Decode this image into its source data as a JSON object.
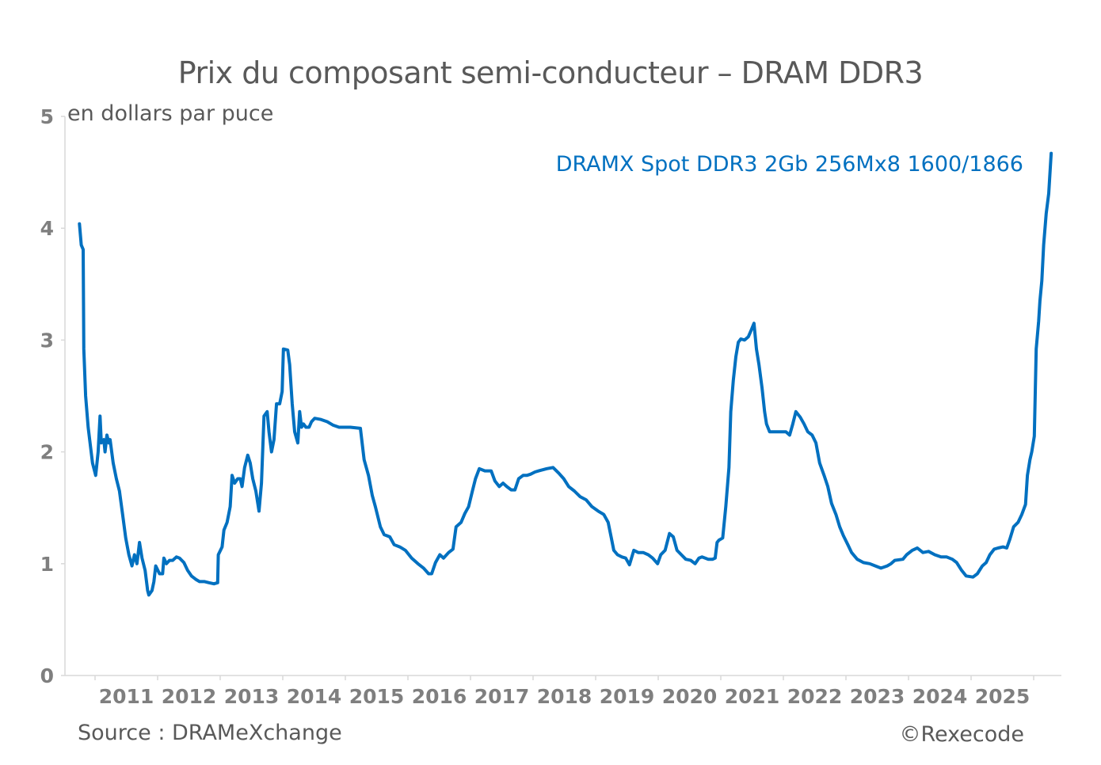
{
  "chart_data": {
    "type": "line",
    "title": "Prix du composant semi-conducteur – DRAM DDR3",
    "ylabel": "en dollars par puce",
    "xlabel": "",
    "ylim": [
      0,
      5
    ],
    "xlim": [
      2010.5,
      2026.42
    ],
    "yticks": [
      "0",
      "1",
      "2",
      "3",
      "4",
      "5"
    ],
    "xtick_labels": [
      "2011",
      "2012",
      "2013",
      "2014",
      "2015",
      "2016",
      "2017",
      "2018",
      "2019",
      "2020",
      "2021",
      "2022",
      "2023",
      "2024",
      "2025"
    ],
    "grid": false,
    "legend_position": "top-right",
    "source": "Source : DRAMeXchange",
    "copyright": "©Rexecode",
    "series": [
      {
        "name": "DRAMX Spot DDR3 2Gb 256Mx8 1600/1866",
        "color": "#0070c0",
        "points": [
          [
            2010.75,
            4.04
          ],
          [
            2010.78,
            3.85
          ],
          [
            2010.81,
            3.81
          ],
          [
            2010.82,
            2.92
          ],
          [
            2010.85,
            2.5
          ],
          [
            2010.89,
            2.22
          ],
          [
            2010.92,
            2.08
          ],
          [
            2010.96,
            1.9
          ],
          [
            2011.01,
            1.79
          ],
          [
            2011.05,
            2.0
          ],
          [
            2011.08,
            2.32
          ],
          [
            2011.1,
            2.08
          ],
          [
            2011.14,
            2.11
          ],
          [
            2011.16,
            2.0
          ],
          [
            2011.19,
            2.15
          ],
          [
            2011.22,
            2.08
          ],
          [
            2011.24,
            2.11
          ],
          [
            2011.29,
            1.9
          ],
          [
            2011.34,
            1.76
          ],
          [
            2011.39,
            1.65
          ],
          [
            2011.44,
            1.44
          ],
          [
            2011.49,
            1.23
          ],
          [
            2011.54,
            1.08
          ],
          [
            2011.59,
            0.98
          ],
          [
            2011.63,
            1.08
          ],
          [
            2011.67,
            1.0
          ],
          [
            2011.71,
            1.19
          ],
          [
            2011.75,
            1.05
          ],
          [
            2011.8,
            0.94
          ],
          [
            2011.84,
            0.76
          ],
          [
            2011.86,
            0.72
          ],
          [
            2011.91,
            0.76
          ],
          [
            2011.94,
            0.84
          ],
          [
            2011.97,
            0.98
          ],
          [
            2012.03,
            0.91
          ],
          [
            2012.08,
            0.91
          ],
          [
            2012.1,
            1.05
          ],
          [
            2012.14,
            1.0
          ],
          [
            2012.19,
            1.03
          ],
          [
            2012.24,
            1.03
          ],
          [
            2012.3,
            1.06
          ],
          [
            2012.35,
            1.05
          ],
          [
            2012.42,
            1.01
          ],
          [
            2012.48,
            0.94
          ],
          [
            2012.54,
            0.89
          ],
          [
            2012.61,
            0.86
          ],
          [
            2012.67,
            0.84
          ],
          [
            2012.75,
            0.84
          ],
          [
            2012.82,
            0.83
          ],
          [
            2012.9,
            0.82
          ],
          [
            2012.96,
            0.83
          ],
          [
            2012.97,
            1.08
          ],
          [
            2013.03,
            1.15
          ],
          [
            2013.06,
            1.3
          ],
          [
            2013.11,
            1.37
          ],
          [
            2013.16,
            1.51
          ],
          [
            2013.19,
            1.79
          ],
          [
            2013.23,
            1.72
          ],
          [
            2013.28,
            1.76
          ],
          [
            2013.32,
            1.76
          ],
          [
            2013.35,
            1.69
          ],
          [
            2013.39,
            1.86
          ],
          [
            2013.44,
            1.97
          ],
          [
            2013.48,
            1.9
          ],
          [
            2013.52,
            1.76
          ],
          [
            2013.57,
            1.65
          ],
          [
            2013.62,
            1.47
          ],
          [
            2013.66,
            1.72
          ],
          [
            2013.7,
            2.32
          ],
          [
            2013.75,
            2.36
          ],
          [
            2013.78,
            2.18
          ],
          [
            2013.82,
            2.0
          ],
          [
            2013.86,
            2.11
          ],
          [
            2013.9,
            2.43
          ],
          [
            2013.95,
            2.43
          ],
          [
            2013.99,
            2.54
          ],
          [
            2014.01,
            2.92
          ],
          [
            2014.08,
            2.91
          ],
          [
            2014.11,
            2.78
          ],
          [
            2014.15,
            2.43
          ],
          [
            2014.19,
            2.18
          ],
          [
            2014.24,
            2.08
          ],
          [
            2014.27,
            2.36
          ],
          [
            2014.3,
            2.22
          ],
          [
            2014.33,
            2.25
          ],
          [
            2014.37,
            2.22
          ],
          [
            2014.42,
            2.22
          ],
          [
            2014.46,
            2.27
          ],
          [
            2014.51,
            2.3
          ],
          [
            2014.61,
            2.29
          ],
          [
            2014.71,
            2.27
          ],
          [
            2014.8,
            2.24
          ],
          [
            2014.9,
            2.22
          ],
          [
            2015.0,
            2.22
          ],
          [
            2015.08,
            2.22
          ],
          [
            2015.24,
            2.21
          ],
          [
            2015.3,
            1.93
          ],
          [
            2015.37,
            1.79
          ],
          [
            2015.43,
            1.61
          ],
          [
            2015.48,
            1.51
          ],
          [
            2015.56,
            1.33
          ],
          [
            2015.62,
            1.26
          ],
          [
            2015.71,
            1.24
          ],
          [
            2015.78,
            1.17
          ],
          [
            2015.87,
            1.15
          ],
          [
            2015.96,
            1.12
          ],
          [
            2016.06,
            1.05
          ],
          [
            2016.16,
            1.0
          ],
          [
            2016.25,
            0.96
          ],
          [
            2016.33,
            0.91
          ],
          [
            2016.38,
            0.91
          ],
          [
            2016.44,
            1.01
          ],
          [
            2016.51,
            1.08
          ],
          [
            2016.57,
            1.05
          ],
          [
            2016.65,
            1.1
          ],
          [
            2016.72,
            1.13
          ],
          [
            2016.77,
            1.33
          ],
          [
            2016.85,
            1.37
          ],
          [
            2016.91,
            1.45
          ],
          [
            2016.97,
            1.51
          ],
          [
            2017.03,
            1.65
          ],
          [
            2017.08,
            1.76
          ],
          [
            2017.14,
            1.85
          ],
          [
            2017.23,
            1.83
          ],
          [
            2017.33,
            1.83
          ],
          [
            2017.39,
            1.74
          ],
          [
            2017.46,
            1.69
          ],
          [
            2017.52,
            1.72
          ],
          [
            2017.58,
            1.69
          ],
          [
            2017.65,
            1.66
          ],
          [
            2017.71,
            1.66
          ],
          [
            2017.77,
            1.76
          ],
          [
            2017.84,
            1.79
          ],
          [
            2017.9,
            1.79
          ],
          [
            2017.96,
            1.8
          ],
          [
            2018.03,
            1.82
          ],
          [
            2018.09,
            1.83
          ],
          [
            2018.22,
            1.85
          ],
          [
            2018.32,
            1.86
          ],
          [
            2018.41,
            1.81
          ],
          [
            2018.49,
            1.76
          ],
          [
            2018.57,
            1.69
          ],
          [
            2018.66,
            1.65
          ],
          [
            2018.75,
            1.6
          ],
          [
            2018.85,
            1.57
          ],
          [
            2018.94,
            1.51
          ],
          [
            2019.04,
            1.47
          ],
          [
            2019.13,
            1.44
          ],
          [
            2019.2,
            1.37
          ],
          [
            2019.25,
            1.23
          ],
          [
            2019.29,
            1.12
          ],
          [
            2019.35,
            1.08
          ],
          [
            2019.42,
            1.06
          ],
          [
            2019.48,
            1.05
          ],
          [
            2019.54,
            0.99
          ],
          [
            2019.61,
            1.12
          ],
          [
            2019.68,
            1.1
          ],
          [
            2019.76,
            1.1
          ],
          [
            2019.84,
            1.08
          ],
          [
            2019.91,
            1.05
          ],
          [
            2019.99,
            1.0
          ],
          [
            2020.04,
            1.08
          ],
          [
            2020.11,
            1.12
          ],
          [
            2020.18,
            1.27
          ],
          [
            2020.24,
            1.24
          ],
          [
            2020.3,
            1.12
          ],
          [
            2020.37,
            1.08
          ],
          [
            2020.44,
            1.04
          ],
          [
            2020.52,
            1.03
          ],
          [
            2020.59,
            1.0
          ],
          [
            2020.65,
            1.05
          ],
          [
            2020.7,
            1.06
          ],
          [
            2020.8,
            1.04
          ],
          [
            2020.87,
            1.04
          ],
          [
            2020.91,
            1.05
          ],
          [
            2020.94,
            1.19
          ],
          [
            2020.97,
            1.21
          ],
          [
            2021.03,
            1.23
          ],
          [
            2021.08,
            1.51
          ],
          [
            2021.13,
            1.86
          ],
          [
            2021.16,
            2.36
          ],
          [
            2021.2,
            2.64
          ],
          [
            2021.24,
            2.85
          ],
          [
            2021.28,
            2.98
          ],
          [
            2021.32,
            3.01
          ],
          [
            2021.38,
            3.0
          ],
          [
            2021.44,
            3.03
          ],
          [
            2021.48,
            3.08
          ],
          [
            2021.53,
            3.15
          ],
          [
            2021.57,
            2.92
          ],
          [
            2021.61,
            2.78
          ],
          [
            2021.66,
            2.57
          ],
          [
            2021.7,
            2.36
          ],
          [
            2021.73,
            2.25
          ],
          [
            2021.78,
            2.18
          ],
          [
            2021.85,
            2.18
          ],
          [
            2021.91,
            2.18
          ],
          [
            2021.97,
            2.18
          ],
          [
            2022.04,
            2.18
          ],
          [
            2022.1,
            2.15
          ],
          [
            2022.15,
            2.25
          ],
          [
            2022.2,
            2.36
          ],
          [
            2022.27,
            2.31
          ],
          [
            2022.33,
            2.25
          ],
          [
            2022.39,
            2.18
          ],
          [
            2022.46,
            2.15
          ],
          [
            2022.52,
            2.08
          ],
          [
            2022.58,
            1.9
          ],
          [
            2022.65,
            1.79
          ],
          [
            2022.71,
            1.69
          ],
          [
            2022.77,
            1.54
          ],
          [
            2022.84,
            1.44
          ],
          [
            2022.9,
            1.33
          ],
          [
            2022.96,
            1.25
          ],
          [
            2023.03,
            1.17
          ],
          [
            2023.09,
            1.1
          ],
          [
            2023.18,
            1.04
          ],
          [
            2023.28,
            1.01
          ],
          [
            2023.38,
            1.0
          ],
          [
            2023.47,
            0.98
          ],
          [
            2023.56,
            0.96
          ],
          [
            2023.66,
            0.98
          ],
          [
            2023.72,
            1.0
          ],
          [
            2023.78,
            1.03
          ],
          [
            2023.91,
            1.04
          ],
          [
            2023.97,
            1.08
          ],
          [
            2024.06,
            1.12
          ],
          [
            2024.14,
            1.14
          ],
          [
            2024.23,
            1.1
          ],
          [
            2024.32,
            1.11
          ],
          [
            2024.42,
            1.08
          ],
          [
            2024.52,
            1.06
          ],
          [
            2024.61,
            1.06
          ],
          [
            2024.7,
            1.04
          ],
          [
            2024.77,
            1.01
          ],
          [
            2024.85,
            0.94
          ],
          [
            2024.92,
            0.89
          ],
          [
            2025.03,
            0.88
          ],
          [
            2025.1,
            0.91
          ],
          [
            2025.18,
            0.98
          ],
          [
            2025.24,
            1.01
          ],
          [
            2025.3,
            1.08
          ],
          [
            2025.37,
            1.13
          ],
          [
            2025.43,
            1.14
          ],
          [
            2025.51,
            1.15
          ],
          [
            2025.57,
            1.14
          ],
          [
            2025.62,
            1.22
          ],
          [
            2025.68,
            1.33
          ],
          [
            2025.75,
            1.37
          ],
          [
            2025.81,
            1.44
          ],
          [
            2025.87,
            1.53
          ],
          [
            2025.9,
            1.79
          ],
          [
            2025.94,
            1.93
          ],
          [
            2025.97,
            2.0
          ],
          [
            2026.01,
            2.14
          ],
          [
            2026.04,
            2.92
          ],
          [
            2026.08,
            3.17
          ],
          [
            2026.1,
            3.35
          ],
          [
            2026.13,
            3.53
          ],
          [
            2026.16,
            3.85
          ],
          [
            2026.2,
            4.13
          ],
          [
            2026.24,
            4.31
          ],
          [
            2026.28,
            4.67
          ]
        ]
      }
    ]
  }
}
